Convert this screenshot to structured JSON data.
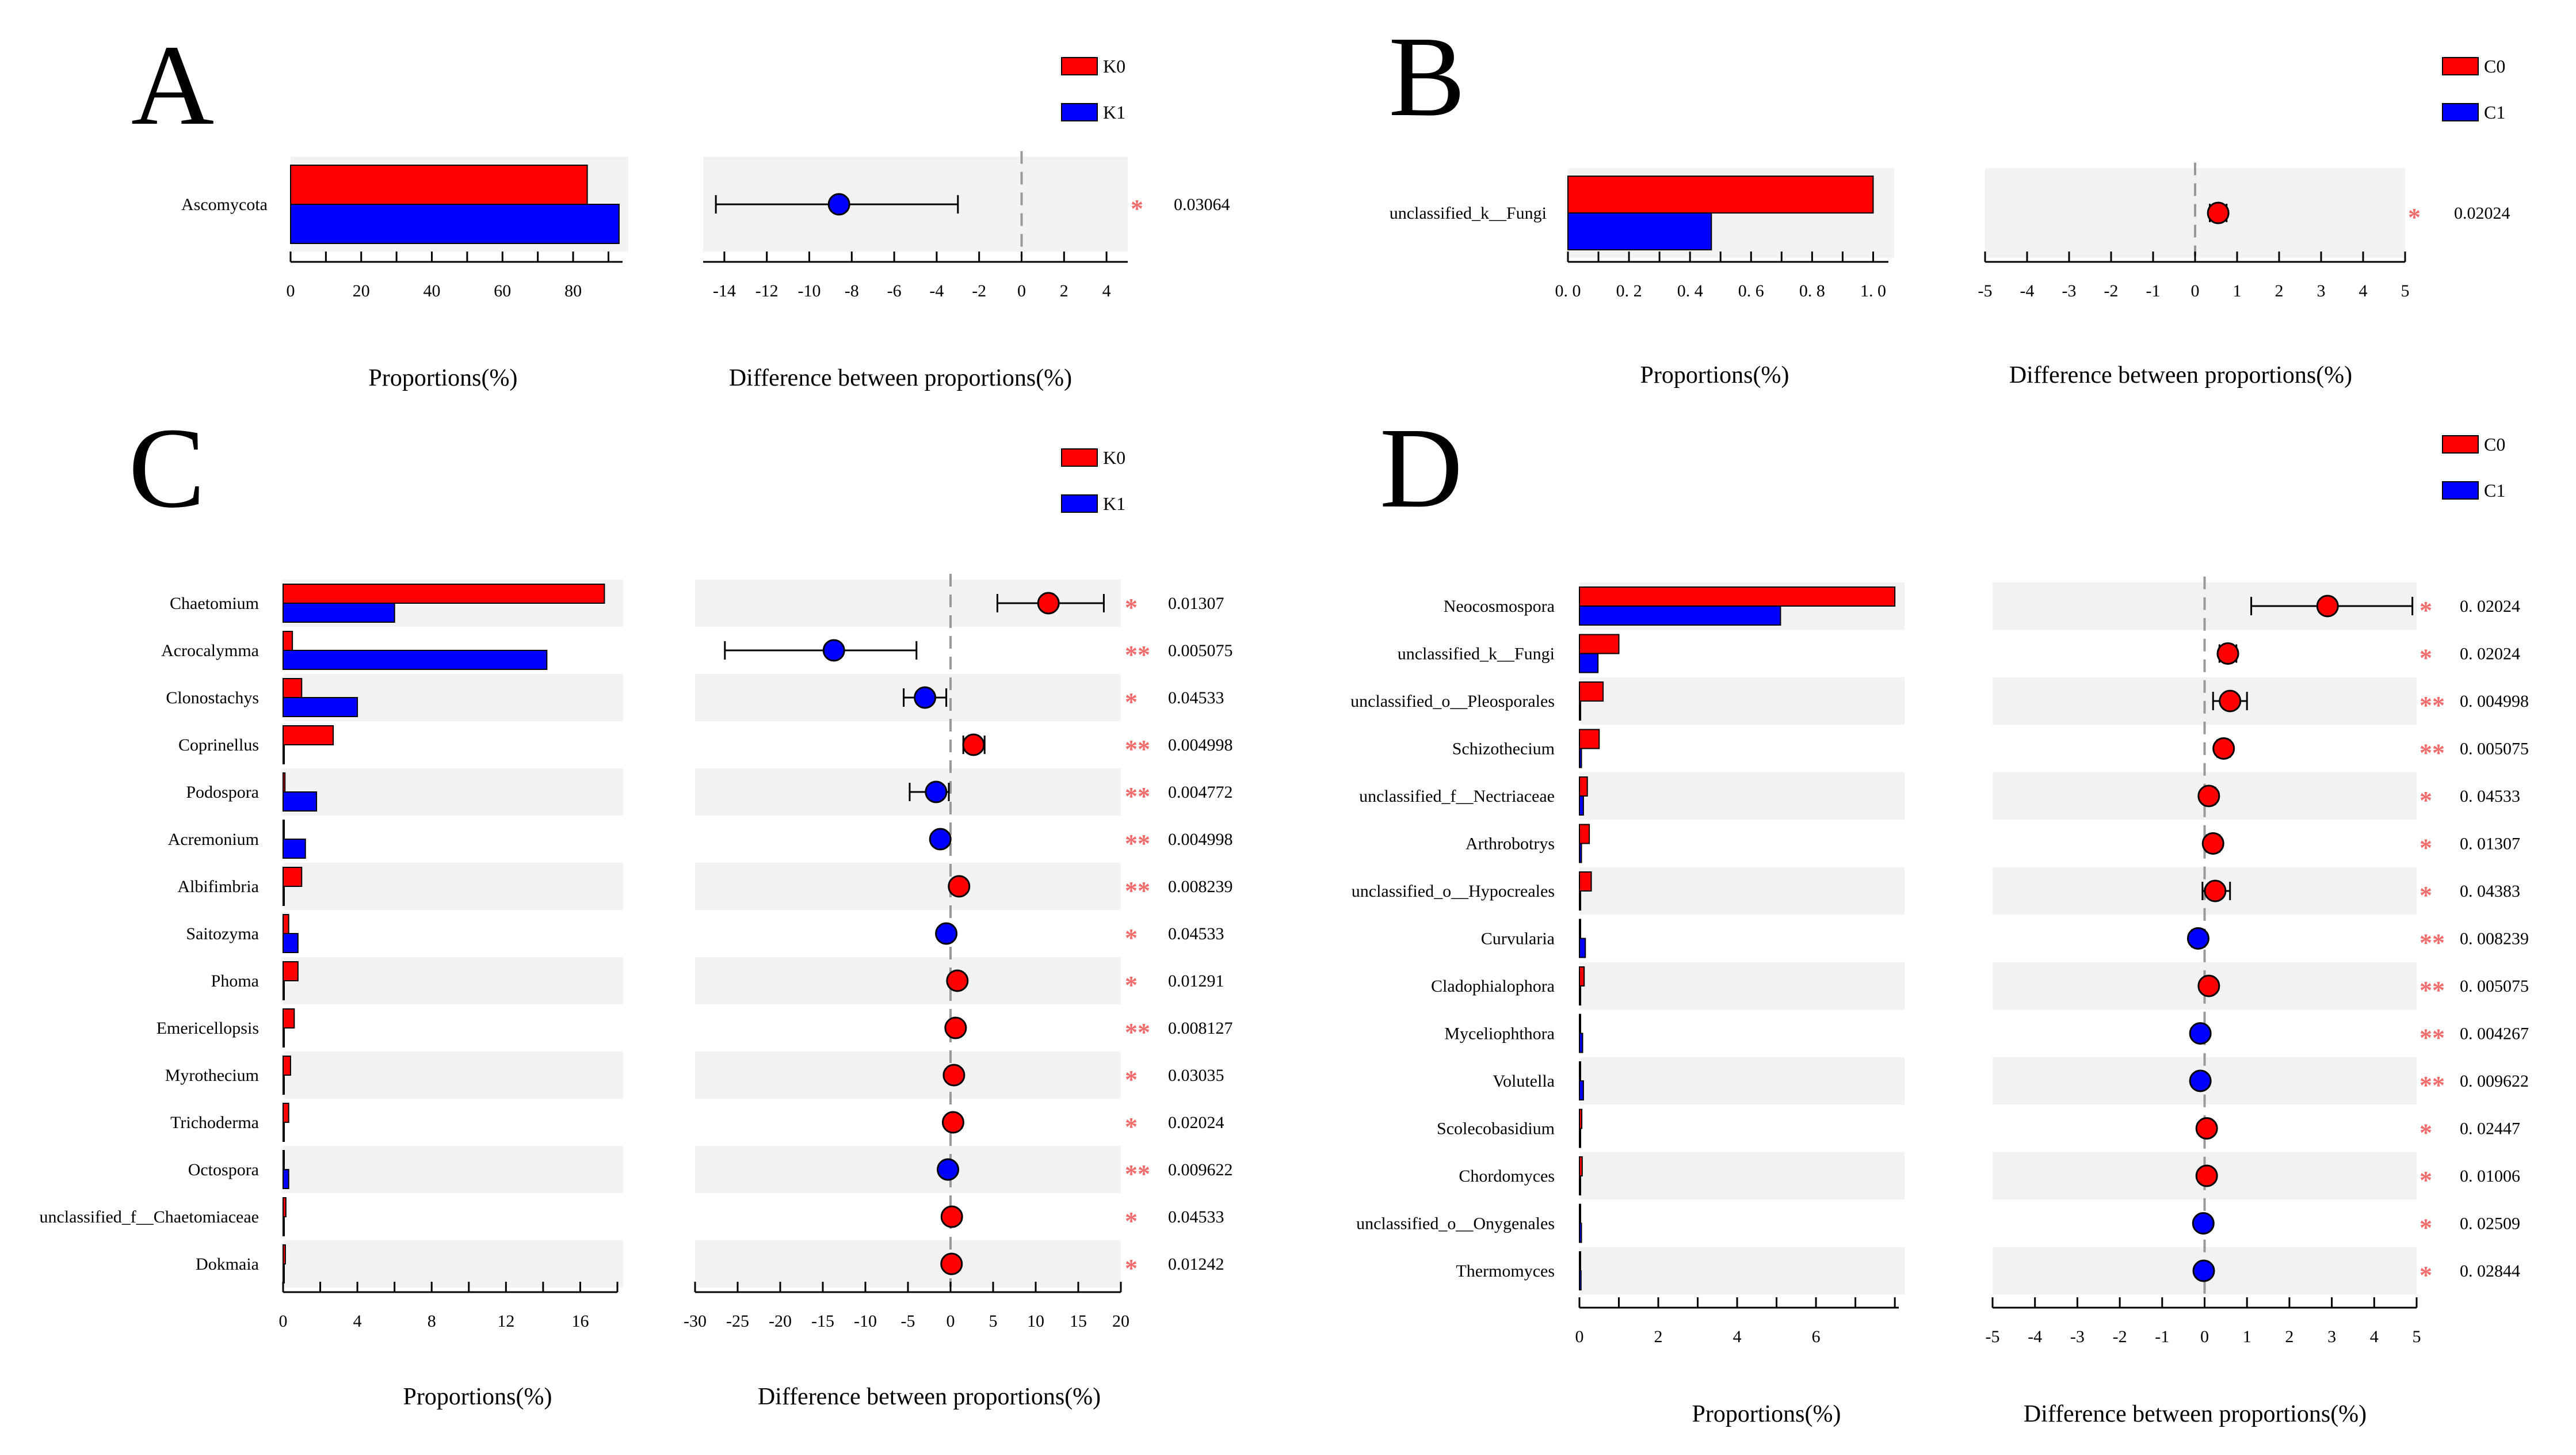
{
  "colors": {
    "group1": "#ff0000",
    "group2": "#0000ff",
    "band": "#f2f2f2",
    "sig": "#f26b6b",
    "dash": "#999999"
  },
  "labels": {
    "prop_axis": "Proportions(%)",
    "diff_axis": "Difference between proportions(%)"
  },
  "chart_data": [
    {
      "panel": "A",
      "type": "extended-error-bar",
      "legend": [
        "K0",
        "K1"
      ],
      "prop_ticks": [
        "0",
        "20",
        "40",
        "60",
        "80"
      ],
      "prop_max": 94,
      "diff_ticks": [
        "-14",
        "-12",
        "-10",
        "-8",
        "-6",
        "-4",
        "-2",
        "0",
        "2",
        "4"
      ],
      "diff_range": [
        -15,
        5
      ],
      "items": [
        {
          "name": "Ascomycota",
          "g1": 84,
          "g2": 93,
          "diff": -8.6,
          "lo": -14.4,
          "hi": -3.0,
          "sig": "*",
          "p": "0.03064"
        }
      ]
    },
    {
      "panel": "B",
      "type": "extended-error-bar",
      "legend": [
        "C0",
        "C1"
      ],
      "prop_ticks": [
        "0. 0",
        "0. 2",
        "0. 4",
        "0. 6",
        "0. 8",
        "1. 0"
      ],
      "prop_max": 1.05,
      "diff_ticks": [
        "-5",
        "-4",
        "-3",
        "-2",
        "-1",
        "0",
        "1",
        "2",
        "3",
        "4",
        "5"
      ],
      "diff_range": [
        -5,
        5
      ],
      "items": [
        {
          "name": "unclassified_k__Fungi",
          "g1": 1.0,
          "g2": 0.47,
          "diff": 0.55,
          "lo": 0.35,
          "hi": 0.75,
          "sig": "*",
          "p": "0.02024"
        }
      ]
    },
    {
      "panel": "C",
      "type": "extended-error-bar",
      "legend": [
        "K0",
        "K1"
      ],
      "prop_ticks": [
        "0",
        "4",
        "8",
        "12",
        "16"
      ],
      "prop_max": 18,
      "diff_ticks": [
        "-30",
        "-25",
        "-20",
        "-15",
        "-10",
        "-5",
        "0",
        "5",
        "10",
        "15",
        "20"
      ],
      "diff_range": [
        -30,
        20
      ],
      "items": [
        {
          "name": "Chaetomium",
          "g1": 17.3,
          "g2": 6.0,
          "diff": 11.5,
          "lo": 5.5,
          "hi": 18.0,
          "sig": "*",
          "p": "0.01307"
        },
        {
          "name": "Acrocalymma",
          "g1": 0.5,
          "g2": 14.2,
          "diff": -13.7,
          "lo": -26.5,
          "hi": -4.0,
          "sig": "**",
          "p": "0.005075"
        },
        {
          "name": "Clonostachys",
          "g1": 1.0,
          "g2": 4.0,
          "diff": -3.0,
          "lo": -5.5,
          "hi": -0.5,
          "sig": "*",
          "p": "0.04533"
        },
        {
          "name": "Coprinellus",
          "g1": 2.7,
          "g2": 0.05,
          "diff": 2.7,
          "lo": 1.5,
          "hi": 4.0,
          "sig": "**",
          "p": "0.004998"
        },
        {
          "name": "Podospora",
          "g1": 0.1,
          "g2": 1.8,
          "diff": -1.7,
          "lo": -4.8,
          "hi": -0.2,
          "sig": "**",
          "p": "0.004772"
        },
        {
          "name": "Acremonium",
          "g1": 0.05,
          "g2": 1.2,
          "diff": -1.2,
          "lo": -1.8,
          "hi": -0.6,
          "sig": "**",
          "p": "0.004998"
        },
        {
          "name": "Albifimbria",
          "g1": 1.0,
          "g2": 0.05,
          "diff": 1.0,
          "lo": 0.5,
          "hi": 1.5,
          "sig": "**",
          "p": "0.008239"
        },
        {
          "name": "Saitozyma",
          "g1": 0.3,
          "g2": 0.8,
          "diff": -0.5,
          "lo": -1.0,
          "hi": 0.0,
          "sig": "*",
          "p": "0.04533"
        },
        {
          "name": "Phoma",
          "g1": 0.8,
          "g2": 0.05,
          "diff": 0.8,
          "lo": 0.3,
          "hi": 1.3,
          "sig": "*",
          "p": "0.01291"
        },
        {
          "name": "Emericellopsis",
          "g1": 0.6,
          "g2": 0.02,
          "diff": 0.6,
          "lo": 0.2,
          "hi": 1.0,
          "sig": "**",
          "p": "0.008127"
        },
        {
          "name": "Myrothecium",
          "g1": 0.4,
          "g2": 0.02,
          "diff": 0.4,
          "lo": 0.1,
          "hi": 0.7,
          "sig": "*",
          "p": "0.03035"
        },
        {
          "name": "Trichoderma",
          "g1": 0.3,
          "g2": 0.02,
          "diff": 0.3,
          "lo": 0.1,
          "hi": 0.5,
          "sig": "*",
          "p": "0.02024"
        },
        {
          "name": "Octospora",
          "g1": 0.02,
          "g2": 0.3,
          "diff": -0.3,
          "lo": -0.5,
          "hi": -0.1,
          "sig": "**",
          "p": "0.009622"
        },
        {
          "name": "unclassified_f__Chaetomiaceae",
          "g1": 0.15,
          "g2": 0.05,
          "diff": 0.15,
          "lo": 0.0,
          "hi": 0.3,
          "sig": "*",
          "p": "0.04533"
        },
        {
          "name": "Dokmaia",
          "g1": 0.12,
          "g2": 0.02,
          "diff": 0.12,
          "lo": 0.0,
          "hi": 0.25,
          "sig": "*",
          "p": "0.01242"
        }
      ]
    },
    {
      "panel": "D",
      "type": "extended-error-bar",
      "legend": [
        "C0",
        "C1"
      ],
      "prop_ticks": [
        "0",
        "2",
        "4",
        "6"
      ],
      "prop_max": 8.1,
      "diff_ticks": [
        "-5",
        "-4",
        "-3",
        "-2",
        "-1",
        "0",
        "1",
        "2",
        "3",
        "4",
        "5"
      ],
      "diff_range": [
        -5,
        5
      ],
      "items": [
        {
          "name": "Neocosmospora",
          "g1": 8.0,
          "g2": 5.1,
          "diff": 2.9,
          "lo": 1.1,
          "hi": 4.9,
          "sig": "*",
          "p": "0. 02024"
        },
        {
          "name": "unclassified_k__Fungi",
          "g1": 1.0,
          "g2": 0.47,
          "diff": 0.55,
          "lo": 0.35,
          "hi": 0.75,
          "sig": "*",
          "p": "0. 02024"
        },
        {
          "name": "unclassified_o__Pleosporales",
          "g1": 0.6,
          "g2": 0.03,
          "diff": 0.6,
          "lo": 0.2,
          "hi": 1.0,
          "sig": "**",
          "p": "0. 004998"
        },
        {
          "name": "Schizothecium",
          "g1": 0.5,
          "g2": 0.05,
          "diff": 0.45,
          "lo": 0.3,
          "hi": 0.6,
          "sig": "**",
          "p": "0. 005075"
        },
        {
          "name": "unclassified_f__Nectriaceae",
          "g1": 0.2,
          "g2": 0.1,
          "diff": 0.1,
          "lo": 0.0,
          "hi": 0.25,
          "sig": "*",
          "p": "0. 04533"
        },
        {
          "name": "Arthrobotrys",
          "g1": 0.25,
          "g2": 0.05,
          "diff": 0.2,
          "lo": 0.05,
          "hi": 0.35,
          "sig": "*",
          "p": "0. 01307"
        },
        {
          "name": "unclassified_o__Hypocreales",
          "g1": 0.3,
          "g2": 0.03,
          "diff": 0.25,
          "lo": -0.05,
          "hi": 0.6,
          "sig": "*",
          "p": "0. 04383"
        },
        {
          "name": "Curvularia",
          "g1": 0.02,
          "g2": 0.15,
          "diff": -0.15,
          "lo": -0.3,
          "hi": 0.0,
          "sig": "**",
          "p": "0. 008239"
        },
        {
          "name": "Cladophialophora",
          "g1": 0.12,
          "g2": 0.03,
          "diff": 0.1,
          "lo": 0.0,
          "hi": 0.2,
          "sig": "**",
          "p": "0. 005075"
        },
        {
          "name": "Myceliophthora",
          "g1": 0.02,
          "g2": 0.08,
          "diff": -0.1,
          "lo": -0.2,
          "hi": 0.0,
          "sig": "**",
          "p": "0. 004267"
        },
        {
          "name": "Volutella",
          "g1": 0.02,
          "g2": 0.1,
          "diff": -0.1,
          "lo": -0.2,
          "hi": 0.0,
          "sig": "**",
          "p": "0. 009622"
        },
        {
          "name": "Scolecobasidium",
          "g1": 0.06,
          "g2": 0.02,
          "diff": 0.05,
          "lo": 0.0,
          "hi": 0.1,
          "sig": "*",
          "p": "0. 02447"
        },
        {
          "name": "Chordomyces",
          "g1": 0.07,
          "g2": 0.02,
          "diff": 0.05,
          "lo": 0.0,
          "hi": 0.1,
          "sig": "*",
          "p": "0. 01006"
        },
        {
          "name": "unclassified_o__Onygenales",
          "g1": 0.02,
          "g2": 0.05,
          "diff": -0.03,
          "lo": -0.1,
          "hi": 0.0,
          "sig": "*",
          "p": "0. 02509"
        },
        {
          "name": "Thermomyces",
          "g1": 0.02,
          "g2": 0.04,
          "diff": -0.02,
          "lo": -0.1,
          "hi": 0.0,
          "sig": "*",
          "p": "0. 02844"
        }
      ]
    }
  ]
}
